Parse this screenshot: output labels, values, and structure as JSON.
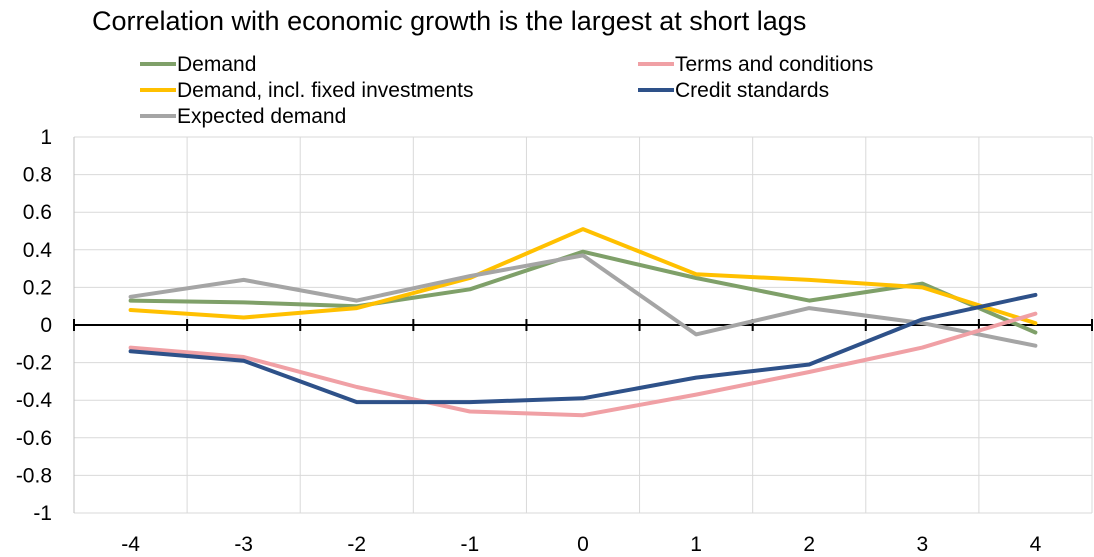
{
  "chart_data": {
    "type": "line",
    "title": "Correlation with economic growth is the largest at short lags",
    "xlabel": "",
    "ylabel": "",
    "x": [
      -4,
      -3,
      -2,
      -1,
      0,
      1,
      2,
      3,
      4
    ],
    "ylim": [
      -1,
      1
    ],
    "yticks": [
      1,
      0.8,
      0.6,
      0.4,
      0.2,
      0,
      -0.2,
      -0.4,
      -0.6,
      -0.8,
      -1
    ],
    "yticklabels": [
      "1",
      "0.8",
      "0.6",
      "0.4",
      "0.2",
      "0",
      "-0.2",
      "-0.4",
      "-0.6",
      "-0.8",
      "-1"
    ],
    "grid": true,
    "legend_position": "top",
    "series": [
      {
        "name": "Demand",
        "color": "#7fa069",
        "values": [
          0.13,
          0.12,
          0.1,
          0.19,
          0.39,
          0.25,
          0.13,
          0.22,
          -0.04
        ]
      },
      {
        "name": "Demand, incl. fixed investments",
        "color": "#ffc000",
        "values": [
          0.08,
          0.04,
          0.09,
          0.25,
          0.51,
          0.27,
          0.24,
          0.2,
          0.01
        ]
      },
      {
        "name": "Expected demand",
        "color": "#a5a5a5",
        "values": [
          0.15,
          0.24,
          0.13,
          0.26,
          0.37,
          -0.05,
          0.09,
          0.01,
          -0.11
        ]
      },
      {
        "name": "Terms and conditions",
        "color": "#f0a0a5",
        "values": [
          -0.12,
          -0.17,
          -0.33,
          -0.46,
          -0.48,
          -0.37,
          -0.25,
          -0.12,
          0.06
        ]
      },
      {
        "name": "Credit standards",
        "color": "#2e5189",
        "values": [
          -0.14,
          -0.19,
          -0.41,
          -0.41,
          -0.39,
          -0.28,
          -0.21,
          0.03,
          0.16
        ]
      }
    ]
  }
}
